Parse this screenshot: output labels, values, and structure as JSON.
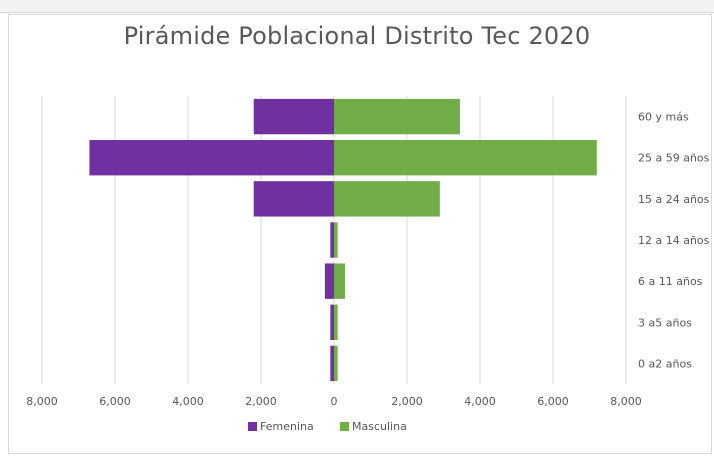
{
  "chart_data": {
    "type": "bar",
    "orientation": "horizontal",
    "title": "Pirámide Poblacional Distrito Tec 2020",
    "categories": [
      "60 y más",
      "25 a 59 años",
      "15 a 24 años",
      "12 a 14 años",
      "6 a 11 años",
      "3 a5 años",
      "0 a2 años"
    ],
    "series": [
      {
        "name": "Femenina",
        "color": "#7030a0",
        "values": [
          2200,
          6700,
          2200,
          100,
          250,
          100,
          100
        ]
      },
      {
        "name": "Masculina",
        "color": "#70ad47",
        "values": [
          3450,
          7200,
          2900,
          100,
          300,
          100,
          100
        ]
      }
    ],
    "x_ticks": [
      "8,000",
      "6,000",
      "4,000",
      "2,000",
      "0",
      "2,000",
      "4,000",
      "6,000",
      "8,000"
    ],
    "xlim": [
      -8000,
      8000
    ],
    "grid": true,
    "legend": "bottom"
  }
}
